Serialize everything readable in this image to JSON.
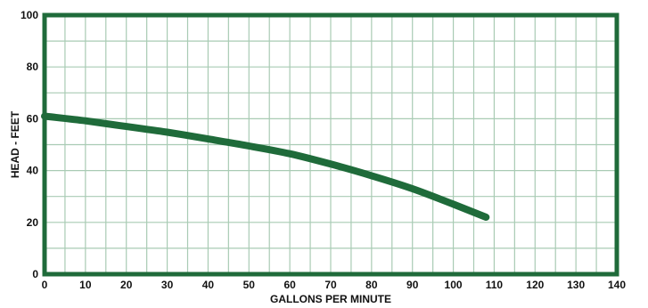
{
  "chart_data": {
    "type": "line",
    "title": "",
    "xlabel": "GALLONS PER MINUTE",
    "ylabel": "HEAD - FEET",
    "xlim": [
      0,
      140
    ],
    "ylim": [
      0,
      100
    ],
    "xticks": [
      0,
      10,
      20,
      30,
      40,
      50,
      60,
      70,
      80,
      90,
      100,
      110,
      120,
      130,
      140
    ],
    "yticks": [
      0,
      20,
      40,
      60,
      80,
      100
    ],
    "grid": true,
    "colors": {
      "frame": "#1f6b3a",
      "grid": "#a9cbb4",
      "curve": "#1f6b3a"
    },
    "series": [
      {
        "x": [
          0,
          10,
          20,
          30,
          40,
          50,
          60,
          70,
          80,
          90,
          100,
          108
        ],
        "y": [
          61,
          59.2,
          57,
          54.8,
          52.2,
          49.5,
          46.5,
          42.5,
          38,
          33,
          27,
          22
        ]
      }
    ]
  }
}
